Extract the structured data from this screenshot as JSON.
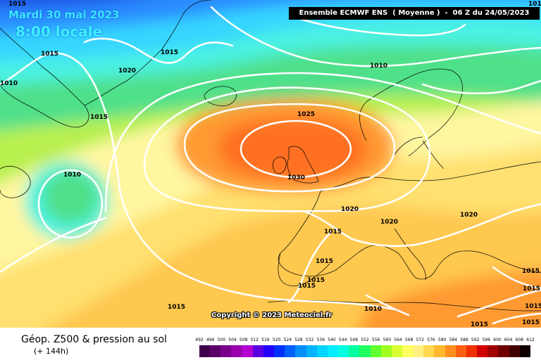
{
  "header": {
    "date": "Mardi 30 mai 2023",
    "local_time": "8:00 locale",
    "run_info": "Ensemble ECMWF ENS  ( Moyenne )  -  06 Z du 24/05/2023"
  },
  "copyright": "Copyright © 2023 Meteociel.fr",
  "footer": {
    "title": "Géop. Z500 & pression au sol",
    "subtitle": "(+ 144h)"
  },
  "isobar_labels": [
    "1015",
    "1015",
    "1010",
    "1020",
    "1015",
    "1010",
    "1025",
    "1015",
    "1010",
    "1030",
    "1020",
    "1020",
    "1020",
    "1015",
    "1015",
    "1015",
    "1015",
    "1015",
    "1010",
    "1015",
    "1015",
    "1015",
    "1015",
    "1015",
    "101"
  ],
  "scale": {
    "values": [
      "492",
      "496",
      "500",
      "504",
      "508",
      "512",
      "516",
      "520",
      "524",
      "528",
      "532",
      "536",
      "540",
      "544",
      "548",
      "552",
      "556",
      "560",
      "564",
      "568",
      "572",
      "576",
      "580",
      "584",
      "588",
      "592",
      "596",
      "600",
      "604",
      "608",
      "612"
    ],
    "colors": [
      "#40004c",
      "#5a0068",
      "#7a008c",
      "#9a00b0",
      "#b400d0",
      "#5a00e0",
      "#2200ff",
      "#0030ff",
      "#0060ff",
      "#0090ff",
      "#00b4ff",
      "#00d4ff",
      "#00ecff",
      "#00ffe0",
      "#00ffa0",
      "#20ff60",
      "#60ff30",
      "#a0ff20",
      "#d8ff30",
      "#ffff60",
      "#fff080",
      "#ffd850",
      "#ffb830",
      "#ff9020",
      "#ff6010",
      "#f03000",
      "#d00000",
      "#a00000",
      "#700000",
      "#400000",
      "#100000"
    ]
  },
  "field_colors": {
    "deep_blue": "#1c52e6",
    "blue": "#2a8cff",
    "cyan": "#34d6ff",
    "aqua": "#4cf2e2",
    "green": "#50e08a",
    "yellowgreen": "#b8f050",
    "pale_yellow": "#fff6a0",
    "yellow": "#ffe070",
    "light_orange": "#ffc850",
    "orange": "#ff9a30",
    "dark_orange": "#ff7020",
    "isobar": "#ffffff",
    "coast": "#000000"
  }
}
